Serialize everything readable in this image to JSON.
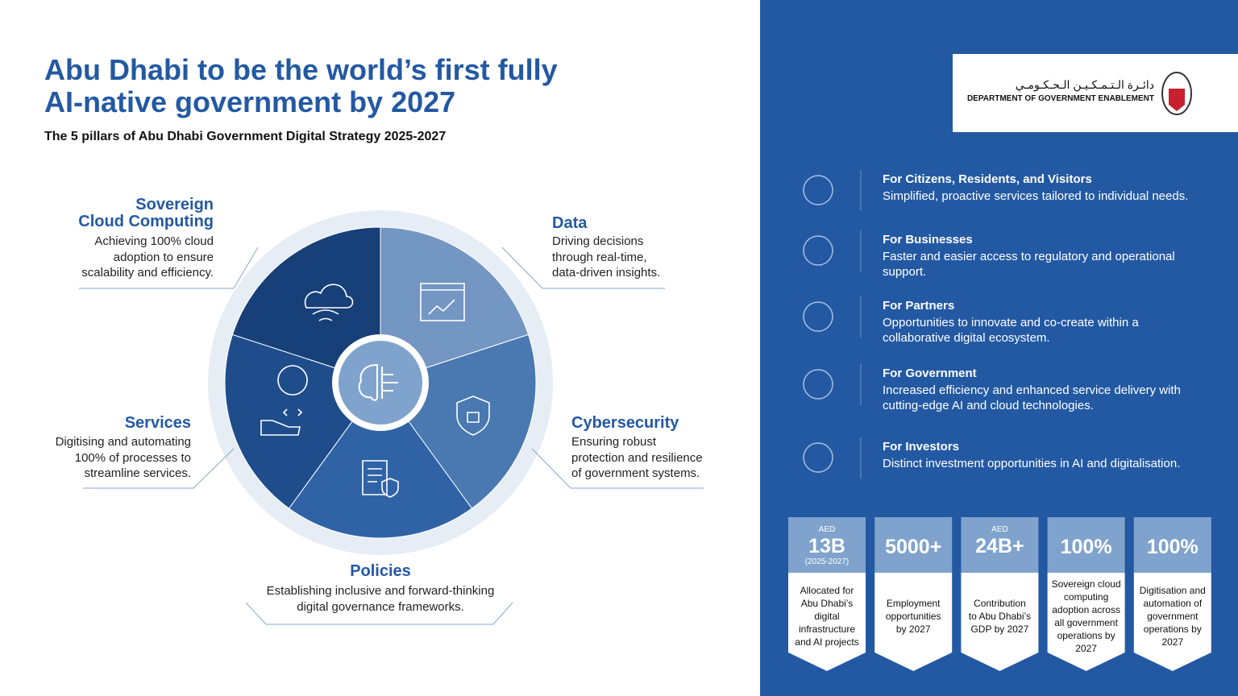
{
  "header": {
    "title_lines": [
      "Abu Dhabi to be the world’s first fully",
      "AI-native government by 2027"
    ],
    "subtitle": "The 5 pillars of Abu Dhabi Government Digital Strategy 2025-2027"
  },
  "pillars": [
    {
      "name": [
        "Sovereign",
        "Cloud Computing"
      ],
      "description": [
        "Achieving 100% cloud",
        "adoption to ensure",
        "scalability and efficiency."
      ]
    },
    {
      "name": [
        "Data"
      ],
      "description": [
        "Driving decisions",
        "through real-time,",
        "data-driven insights."
      ]
    },
    {
      "name": [
        "Cybersecurity"
      ],
      "description": [
        "Ensuring robust",
        "protection and resilience",
        "of government systems."
      ]
    },
    {
      "name": [
        "Policies"
      ],
      "description": [
        "Establishing inclusive and forward-thinking",
        "digital governance frameworks."
      ]
    },
    {
      "name": [
        "Services"
      ],
      "description": [
        "Digitising and automating",
        "100% of processes to",
        "streamline services."
      ]
    }
  ],
  "logo": {
    "arabic": "دائـرة الـتـمـكـيـن الـحـكـومـي",
    "english": "DEPARTMENT OF GOVERNMENT ENABLEMENT"
  },
  "audiences": [
    {
      "title": "For Citizens, Residents, and Visitors",
      "description": "Simplified, proactive services tailored to individual needs."
    },
    {
      "title": "For Businesses",
      "description": "Faster and easier access to regulatory and operational support."
    },
    {
      "title": "For Partners",
      "description": "Opportunities to innovate and co-create within a collaborative digital ecosystem."
    },
    {
      "title": "For Government",
      "description": "Increased efficiency and enhanced service delivery with cutting-edge AI and cloud technologies."
    },
    {
      "title": "For Investors",
      "description": "Distinct investment opportunities in AI and digitalisation."
    }
  ],
  "stats": [
    {
      "prefix": "AED",
      "value": "13B",
      "note": "(2025-2027)",
      "description": [
        "Allocated for",
        "Abu Dhabi’s",
        "digital",
        "infrastructure",
        "and AI projects"
      ]
    },
    {
      "value": "5000+",
      "description": [
        "Employment",
        "opportunities",
        "by 2027"
      ]
    },
    {
      "prefix": "AED",
      "value": "24B+",
      "description": [
        "Contribution",
        "to Abu Dhabi’s",
        "GDP by 2027"
      ]
    },
    {
      "value": "100%",
      "description": [
        "Sovereign cloud",
        "computing",
        "adoption across",
        "all government",
        "operations by",
        "2027"
      ]
    },
    {
      "value": "100%",
      "description": [
        "Digitisation and",
        "automation of",
        "government",
        "operations by",
        "2027"
      ]
    }
  ]
}
